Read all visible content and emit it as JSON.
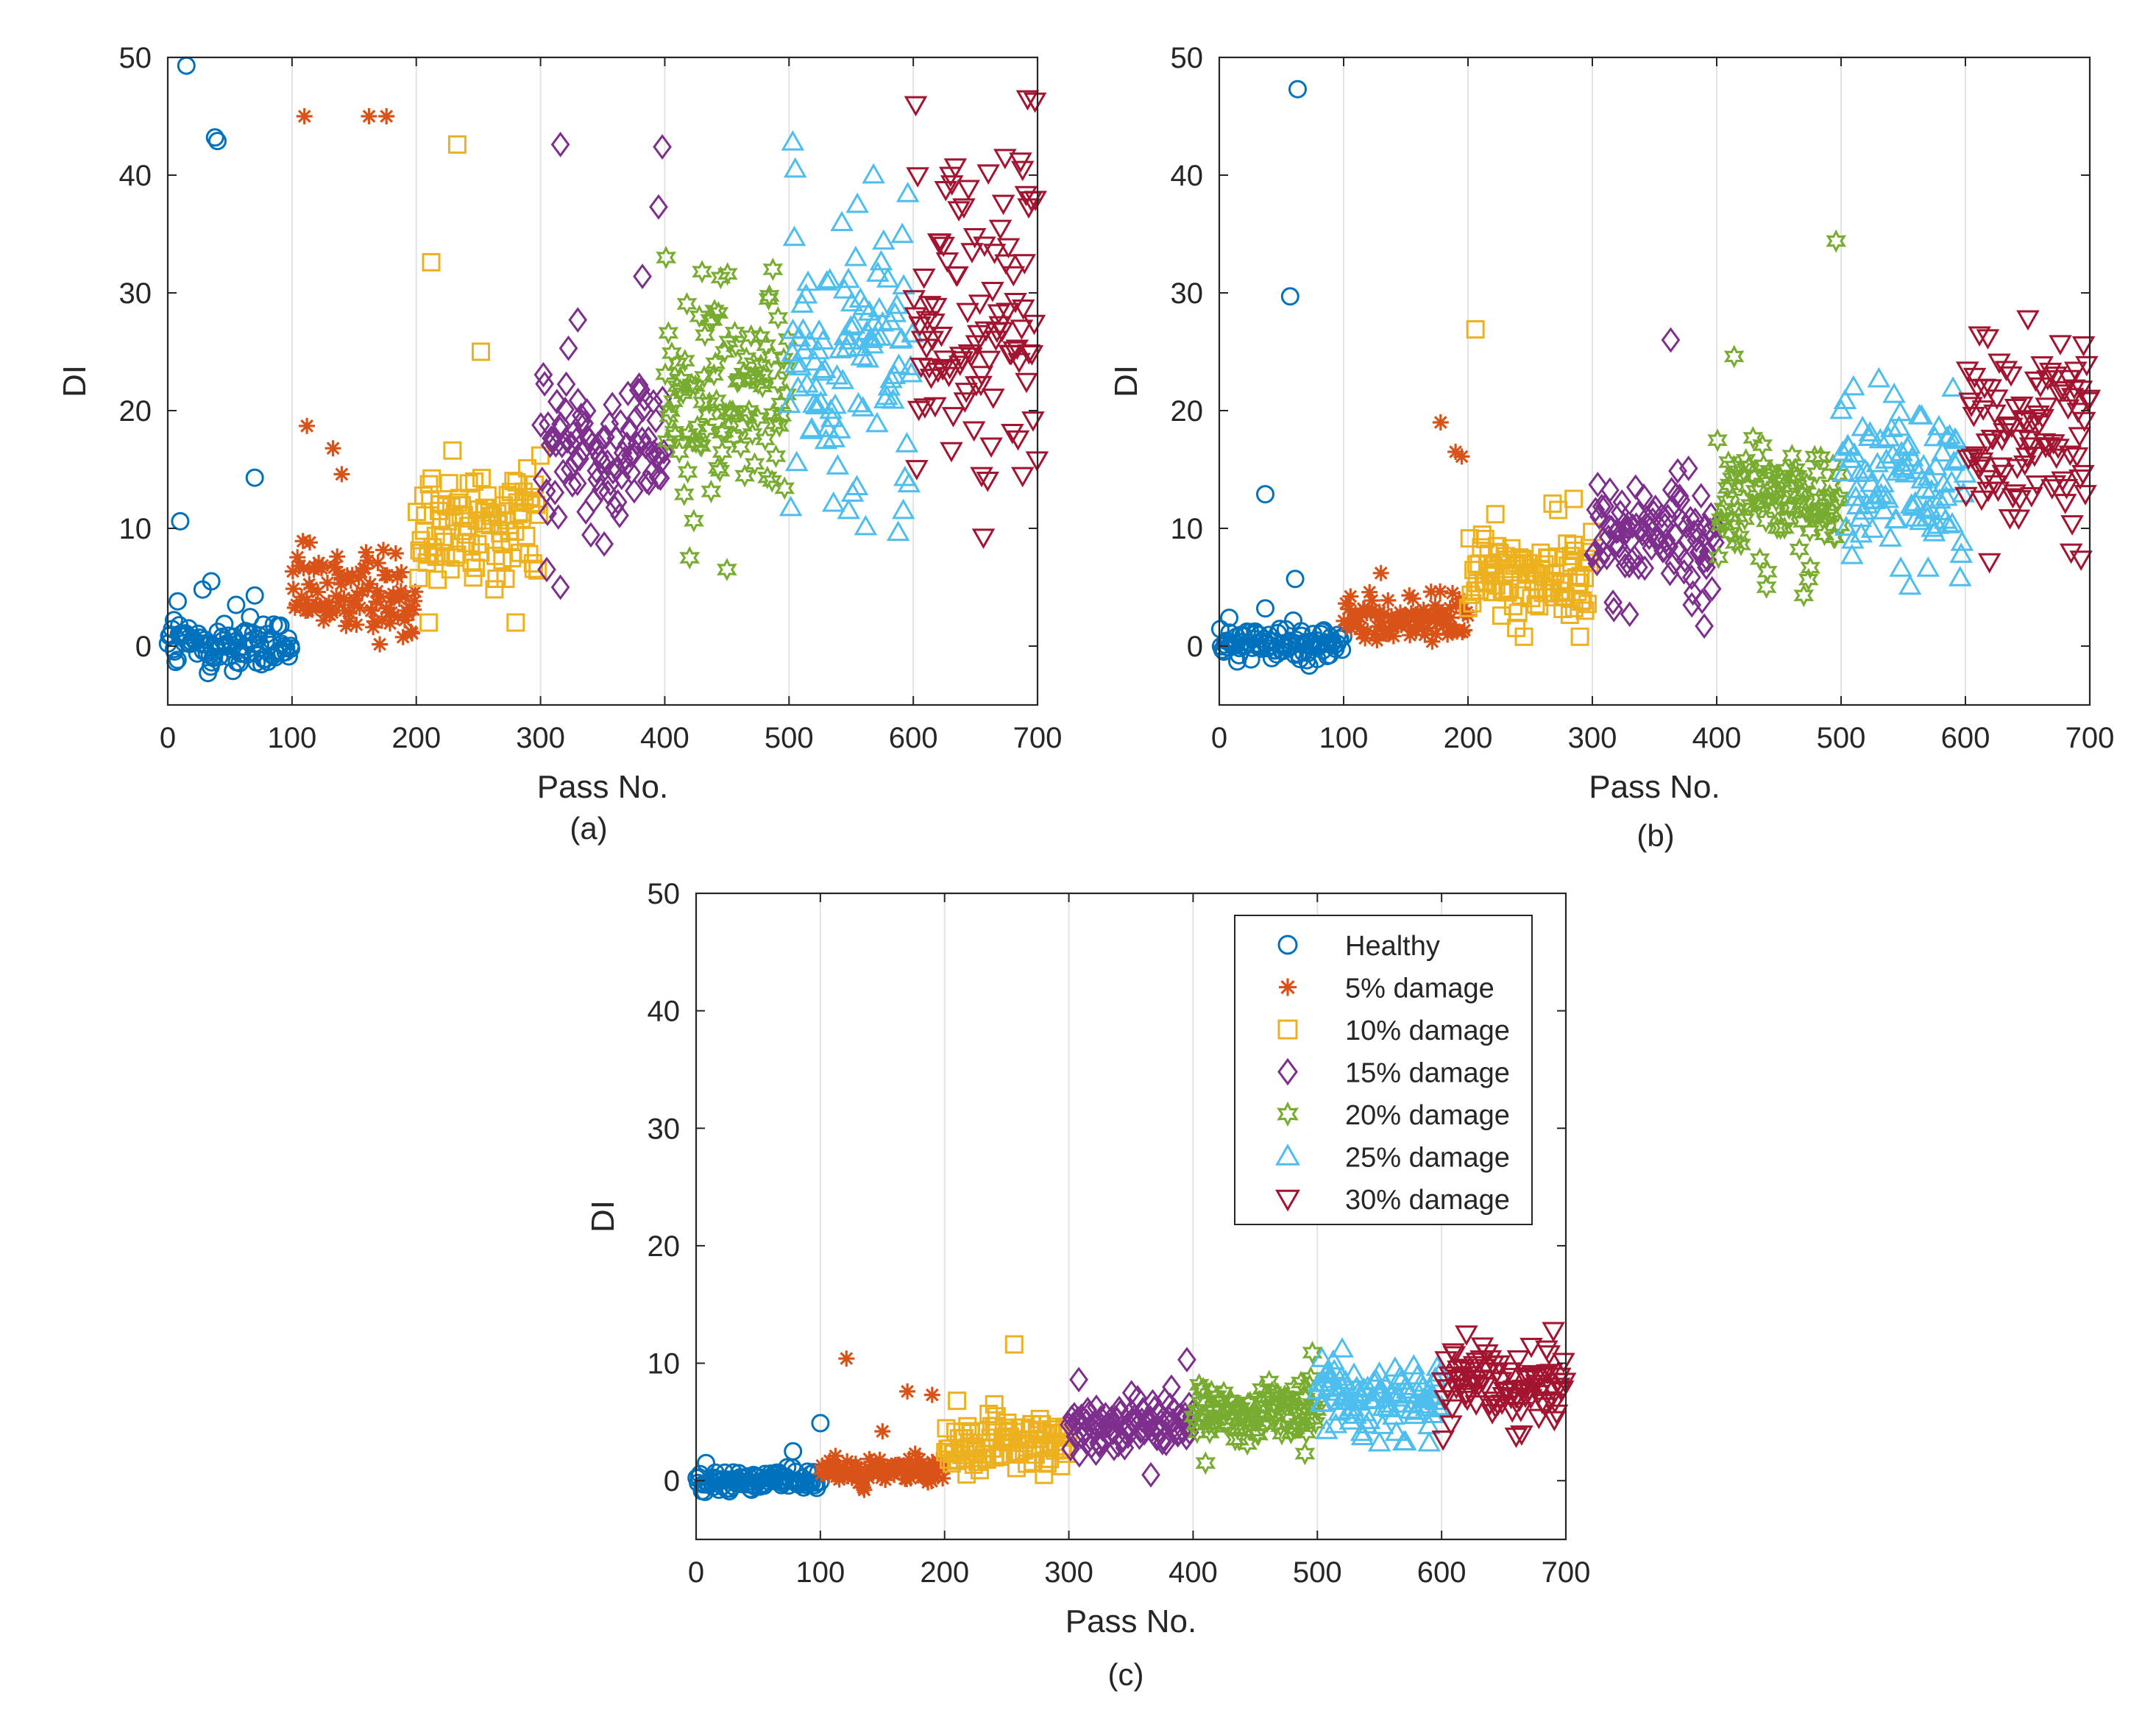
{
  "figure": {
    "panel_captions": [
      "(a)",
      "(b)",
      "(c)"
    ]
  },
  "chart_data": [
    {
      "type": "scatter",
      "panel": "(a)",
      "xlabel": "Pass No.",
      "ylabel": "DI",
      "xlim": [
        0,
        700
      ],
      "ylim": [
        -5,
        50
      ],
      "xticks": [
        0,
        100,
        200,
        300,
        400,
        500,
        600,
        700
      ],
      "yticks": [
        0,
        10,
        20,
        30,
        40,
        50
      ],
      "grid": "vertical",
      "legend": "none",
      "series": [
        {
          "name": "Healthy",
          "marker": "circle",
          "color": "#0072BD",
          "x_range": [
            0,
            100
          ],
          "center": 0,
          "spread": 1.3,
          "outliers": [
            [
              15,
              49.3
            ],
            [
              38,
              43.2
            ],
            [
              40,
              42.9
            ],
            [
              70,
              14.3
            ],
            [
              10,
              10.6
            ],
            [
              35,
              5.5
            ],
            [
              28,
              4.8
            ],
            [
              70,
              4.3
            ],
            [
              8,
              3.8
            ],
            [
              55,
              3.5
            ],
            [
              5,
              2.2
            ]
          ]
        },
        {
          "name": "5% damage",
          "marker": "star",
          "color": "#D95319",
          "x_range": [
            100,
            200
          ],
          "center": 4.5,
          "spread": 2.2,
          "outliers": [
            [
              110,
              45
            ],
            [
              162,
              45
            ],
            [
              176,
              45
            ],
            [
              112,
              18.7
            ],
            [
              133,
              16.8
            ],
            [
              140,
              14.6
            ]
          ]
        },
        {
          "name": "10% damage",
          "marker": "square",
          "color": "#EDB120",
          "x_range": [
            200,
            300
          ],
          "center": 10.5,
          "spread": 3.0,
          "outliers": [
            [
              233,
              42.6
            ],
            [
              212,
              32.6
            ],
            [
              252,
              25
            ],
            [
              280,
              2
            ],
            [
              210,
              2
            ]
          ]
        },
        {
          "name": "15% damage",
          "marker": "diamond",
          "color": "#7E2F8E",
          "x_range": [
            300,
            400
          ],
          "center": 17,
          "spread": 3.5,
          "outliers": [
            [
              316,
              42.6
            ],
            [
              398,
              42.4
            ],
            [
              395,
              37.3
            ],
            [
              382,
              31.4
            ],
            [
              330,
              27.7
            ],
            [
              305,
              6.5
            ],
            [
              316,
              5
            ]
          ]
        },
        {
          "name": "20% damage",
          "marker": "hexagram",
          "color": "#77AC30",
          "x_range": [
            400,
            500
          ],
          "center": 21,
          "spread": 5.0,
          "outliers": [
            [
              401,
              33
            ],
            [
              430,
              31.8
            ],
            [
              445,
              31.3
            ],
            [
              487,
              32
            ],
            [
              440,
              28.5
            ],
            [
              420,
              7.5
            ],
            [
              450,
              6.5
            ]
          ]
        },
        {
          "name": "25% damage",
          "marker": "triangle-up",
          "color": "#4DBEEE",
          "x_range": [
            500,
            600
          ],
          "center": 25,
          "spread": 6.5,
          "outliers": [
            [
              503,
              42.8
            ],
            [
              505,
              40.5
            ],
            [
              555,
              37.5
            ],
            [
              568,
              40
            ],
            [
              548,
              11.5
            ],
            [
              592,
              11.5
            ]
          ]
        },
        {
          "name": "30% damage",
          "marker": "triangle-down",
          "color": "#A2142F",
          "x_range": [
            600,
            700
          ],
          "center": 28,
          "spread": 8.0,
          "outliers": [
            [
              602,
              46
            ],
            [
              692,
              46.5
            ],
            [
              698,
              46.3
            ],
            [
              630,
              40
            ],
            [
              688,
              40.5
            ],
            [
              655,
              14.5
            ],
            [
              688,
              14.5
            ]
          ]
        }
      ]
    },
    {
      "type": "scatter",
      "panel": "(b)",
      "xlabel": "Pass No.",
      "ylabel": "DI",
      "xlim": [
        0,
        700
      ],
      "ylim": [
        -5,
        50
      ],
      "xticks": [
        0,
        100,
        200,
        300,
        400,
        500,
        600,
        700
      ],
      "yticks": [
        0,
        10,
        20,
        30,
        40,
        50
      ],
      "grid": "vertical",
      "legend": "none",
      "series": [
        {
          "name": "Healthy",
          "marker": "circle",
          "color": "#0072BD",
          "x_range": [
            0,
            100
          ],
          "center": 0.2,
          "spread": 0.8,
          "outliers": [
            [
              63,
              47.3
            ],
            [
              57,
              29.7
            ],
            [
              37,
              12.9
            ],
            [
              61,
              5.7
            ],
            [
              37,
              3.2
            ],
            [
              8,
              2.4
            ]
          ]
        },
        {
          "name": "5% damage",
          "marker": "star",
          "color": "#D95319",
          "x_range": [
            100,
            200
          ],
          "center": 2.3,
          "spread": 1.1,
          "outliers": [
            [
              178,
              19
            ],
            [
              190,
              16.5
            ],
            [
              195,
              16.1
            ],
            [
              130,
              6.2
            ]
          ]
        },
        {
          "name": "10% damage",
          "marker": "square",
          "color": "#EDB120",
          "x_range": [
            200,
            300
          ],
          "center": 6.0,
          "spread": 2.2,
          "outliers": [
            [
              206,
              26.9
            ],
            [
              222,
              11.2
            ],
            [
              268,
              12.1
            ],
            [
              285,
              12.5
            ],
            [
              290,
              0.8
            ],
            [
              245,
              0.8
            ]
          ]
        },
        {
          "name": "15% damage",
          "marker": "diamond",
          "color": "#7E2F8E",
          "x_range": [
            300,
            400
          ],
          "center": 9.5,
          "spread": 2.7,
          "outliers": [
            [
              363,
              26
            ],
            [
              390,
              1.7
            ],
            [
              380,
              3.5
            ],
            [
              330,
              2.7
            ]
          ]
        },
        {
          "name": "20% damage",
          "marker": "hexagram",
          "color": "#77AC30",
          "x_range": [
            400,
            500
          ],
          "center": 12.5,
          "spread": 2.7,
          "outliers": [
            [
              496,
              34.4
            ],
            [
              414,
              24.6
            ],
            [
              470,
              4.3
            ],
            [
              440,
              5
            ]
          ]
        },
        {
          "name": "25% damage",
          "marker": "triangle-up",
          "color": "#4DBEEE",
          "x_range": [
            500,
            600
          ],
          "center": 14,
          "spread": 3.5,
          "outliers": [
            [
              548,
              6.6
            ],
            [
              570,
              6.6
            ],
            [
              590,
              21.9
            ],
            [
              510,
              22
            ]
          ]
        },
        {
          "name": "30% damage",
          "marker": "triangle-down",
          "color": "#A2142F",
          "x_range": [
            600,
            700
          ],
          "center": 18.5,
          "spread": 4.5,
          "outliers": [
            [
              618,
              26.2
            ],
            [
              695,
              25.6
            ],
            [
              685,
              8
            ],
            [
              693,
              7.4
            ],
            [
              613,
              12.5
            ]
          ]
        }
      ]
    },
    {
      "type": "scatter",
      "panel": "(c)",
      "xlabel": "Pass No.",
      "ylabel": "DI",
      "xlim": [
        0,
        700
      ],
      "ylim": [
        -5,
        50
      ],
      "xticks": [
        0,
        100,
        200,
        300,
        400,
        500,
        600,
        700
      ],
      "yticks": [
        0,
        10,
        20,
        30,
        40,
        50
      ],
      "grid": "vertical",
      "legend": "top-right",
      "series": [
        {
          "name": "Healthy",
          "marker": "circle",
          "color": "#0072BD",
          "x_range": [
            0,
            100
          ],
          "center": 0,
          "spread": 0.45,
          "outliers": [
            [
              100,
              4.9
            ],
            [
              78,
              2.5
            ],
            [
              8,
              1.5
            ],
            [
              30,
              0.7
            ]
          ]
        },
        {
          "name": "5% damage",
          "marker": "star",
          "color": "#D95319",
          "x_range": [
            100,
            200
          ],
          "center": 0.8,
          "spread": 0.6,
          "outliers": [
            [
              121,
              10.4
            ],
            [
              170,
              7.6
            ],
            [
              190,
              7.3
            ],
            [
              150,
              4.2
            ]
          ]
        },
        {
          "name": "10% damage",
          "marker": "square",
          "color": "#EDB120",
          "x_range": [
            200,
            300
          ],
          "center": 3.0,
          "spread": 1.3,
          "outliers": [
            [
              256,
              11.6
            ],
            [
              210,
              6.8
            ],
            [
              240,
              6.5
            ],
            [
              280,
              0.5
            ]
          ]
        },
        {
          "name": "15% damage",
          "marker": "diamond",
          "color": "#7E2F8E",
          "x_range": [
            300,
            400
          ],
          "center": 4.8,
          "spread": 1.3,
          "outliers": [
            [
              395,
              10.3
            ],
            [
              308,
              8.6
            ],
            [
              366,
              0.5
            ]
          ]
        },
        {
          "name": "20% damage",
          "marker": "hexagram",
          "color": "#77AC30",
          "x_range": [
            400,
            500
          ],
          "center": 6.0,
          "spread": 1.4,
          "outliers": [
            [
              496,
              10.9
            ],
            [
              490,
              2.3
            ],
            [
              410,
              1.5
            ]
          ]
        },
        {
          "name": "25% damage",
          "marker": "triangle-up",
          "color": "#4DBEEE",
          "x_range": [
            500,
            600
          ],
          "center": 7.2,
          "spread": 1.7,
          "outliers": [
            [
              520,
              11.2
            ],
            [
              590,
              3.2
            ],
            [
              550,
              3.2
            ]
          ]
        },
        {
          "name": "30% damage",
          "marker": "triangle-down",
          "color": "#A2142F",
          "x_range": [
            600,
            700
          ],
          "center": 8.2,
          "spread": 1.8,
          "outliers": [
            [
              620,
              12.5
            ],
            [
              690,
              12.8
            ],
            [
              660,
              3.8
            ]
          ]
        }
      ]
    }
  ]
}
